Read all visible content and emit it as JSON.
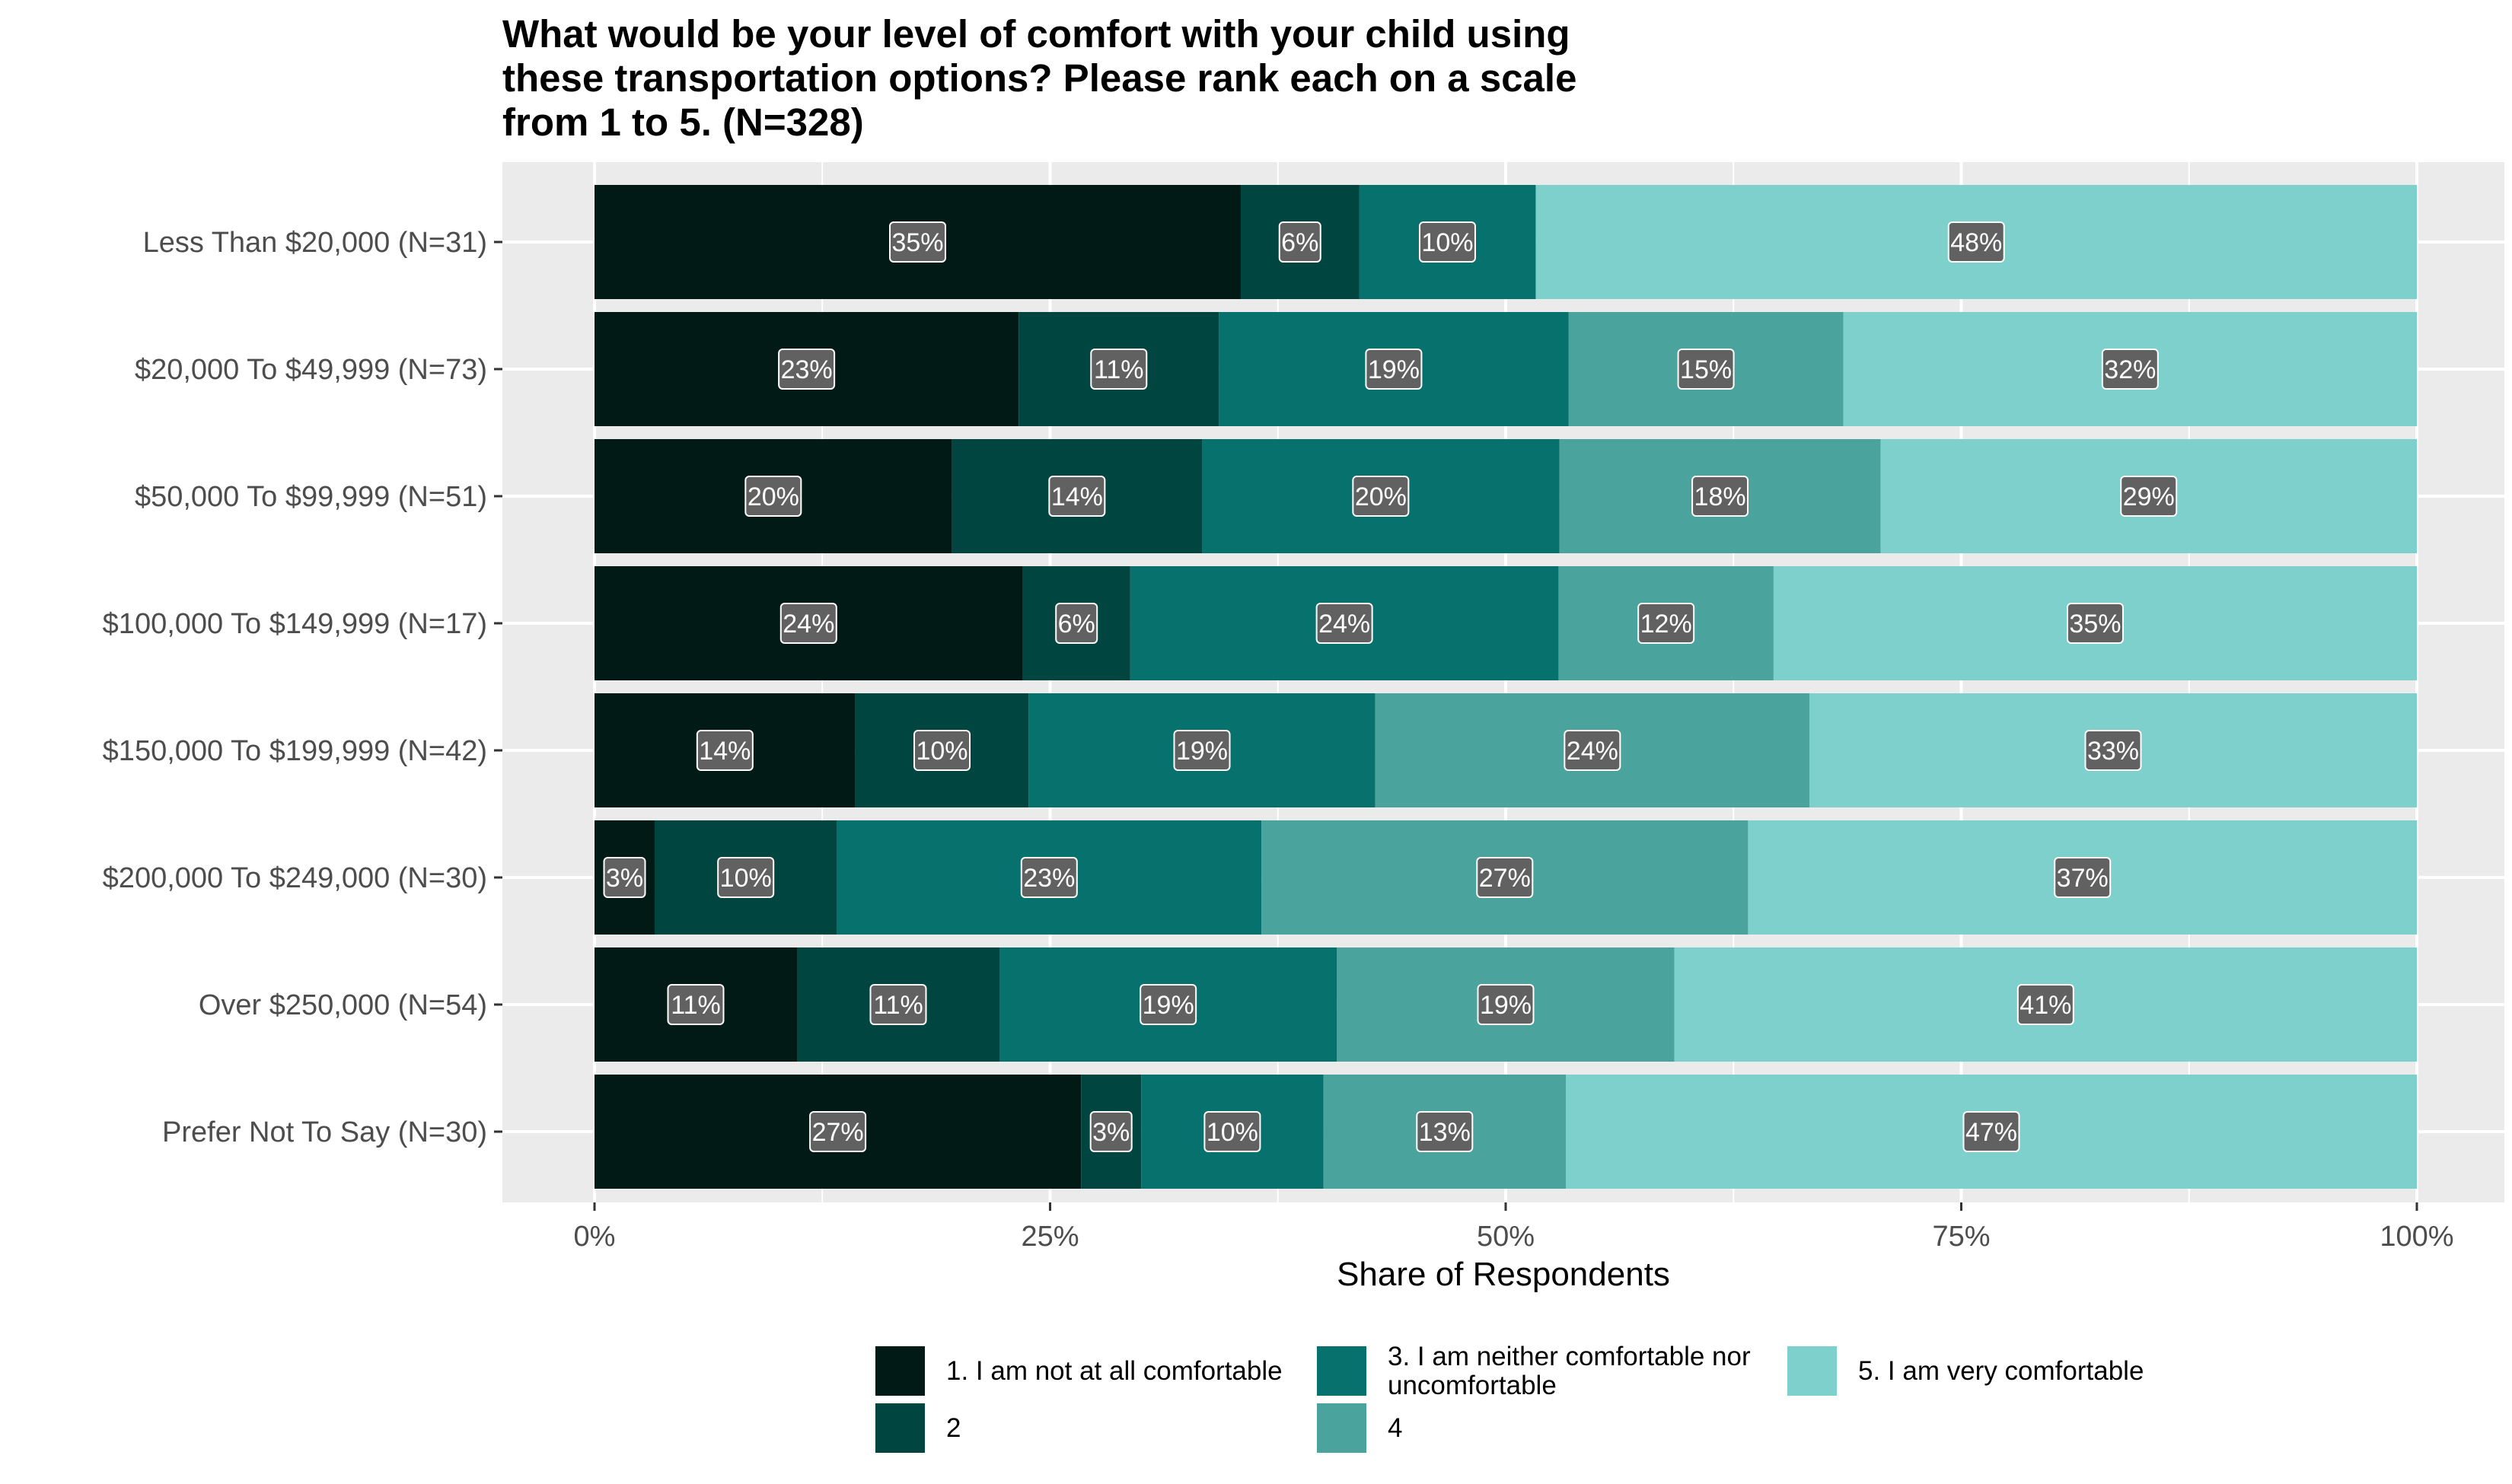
{
  "chart_data": {
    "type": "bar",
    "orientation": "horizontal",
    "stacked": "percent",
    "title": "What would be your level of comfort with your child using these transportation options? Please rank each on a scale from 1 to 5. (N=328)",
    "title_lines": [
      "What would be your level of comfort with your child using",
      "these transportation options? Please rank each on a scale",
      "from 1 to 5. (N=328)"
    ],
    "xlabel": "Share of Respondents",
    "ylabel": "",
    "xlim": [
      0,
      100
    ],
    "x_ticks": [
      0,
      25,
      50,
      75,
      100
    ],
    "x_tick_labels": [
      "0%",
      "25%",
      "50%",
      "75%",
      "100%"
    ],
    "grid": true,
    "legend_position": "bottom",
    "categories": [
      "Less Than $20,000 (N=31)",
      "$20,000 To $49,999 (N=73)",
      "$50,000 To $99,999 (N=51)",
      "$100,000 To $149,999 (N=17)",
      "$150,000 To $199,999 (N=42)",
      "$200,000 To $249,000 (N=30)",
      "Over $250,000 (N=54)",
      "Prefer Not To Say (N=30)"
    ],
    "series": [
      {
        "name": "1. I am not at all comfortable",
        "legend_lines": [
          "1. I am not at all comfortable"
        ],
        "color": "#011a15",
        "values": [
          35.5,
          23.3,
          19.6,
          23.5,
          14.3,
          3.3,
          11.1,
          26.7
        ],
        "labels": [
          "35%",
          "23%",
          "20%",
          "24%",
          "14%",
          "3%",
          "11%",
          "27%"
        ]
      },
      {
        "name": "2",
        "legend_lines": [
          "2"
        ],
        "color": "#014541",
        "values": [
          6.5,
          11.0,
          13.7,
          5.9,
          9.5,
          10.0,
          11.1,
          3.3
        ],
        "labels": [
          "6%",
          "11%",
          "14%",
          "6%",
          "10%",
          "10%",
          "11%",
          "3%"
        ]
      },
      {
        "name": "3. I am neither comfortable nor uncomfortable",
        "legend_lines": [
          "3. I am neither comfortable nor",
          "uncomfortable"
        ],
        "color": "#07716d",
        "values": [
          9.7,
          19.2,
          19.6,
          23.5,
          19.0,
          23.3,
          18.5,
          10.0
        ],
        "labels": [
          "10%",
          "19%",
          "20%",
          "24%",
          "19%",
          "23%",
          "19%",
          "10%"
        ]
      },
      {
        "name": "4",
        "legend_lines": [
          "4"
        ],
        "color": "#4aa39c",
        "values": [
          0,
          15.1,
          17.6,
          11.8,
          23.8,
          26.7,
          18.5,
          13.3
        ],
        "labels": [
          "",
          "15%",
          "18%",
          "12%",
          "24%",
          "27%",
          "19%",
          "13%"
        ]
      },
      {
        "name": "5. I am very comfortable",
        "legend_lines": [
          "5. I am very comfortable"
        ],
        "color": "#7dd0cb",
        "values": [
          48.4,
          31.5,
          29.4,
          35.3,
          33.3,
          36.7,
          40.7,
          46.7
        ],
        "labels": [
          "48%",
          "32%",
          "29%",
          "35%",
          "33%",
          "37%",
          "41%",
          "47%"
        ]
      }
    ],
    "colors": {
      "panel_background": "#ebebeb",
      "gridline": "#ffffff",
      "label_box": "#616161"
    }
  }
}
